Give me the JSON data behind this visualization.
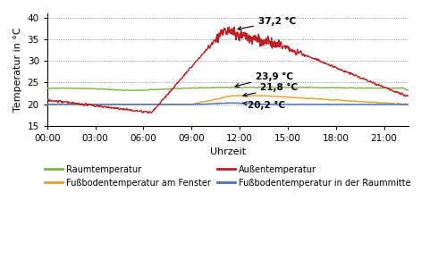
{
  "xlabel": "Uhrzeit",
  "ylabel": "Temperatur in °C",
  "ylim": [
    15,
    41
  ],
  "yticks": [
    15,
    20,
    25,
    30,
    35,
    40
  ],
  "xtick_labels": [
    "00:00",
    "03:00",
    "06:00",
    "09:00",
    "12:00",
    "15:00",
    "18:00",
    "21:00"
  ],
  "colors": {
    "raumtemp": "#7db648",
    "aussentemp": "#be1e24",
    "fussboden_fenster": "#e8a020",
    "fussboden_mitte": "#4472c4"
  },
  "background_color": "#ffffff"
}
